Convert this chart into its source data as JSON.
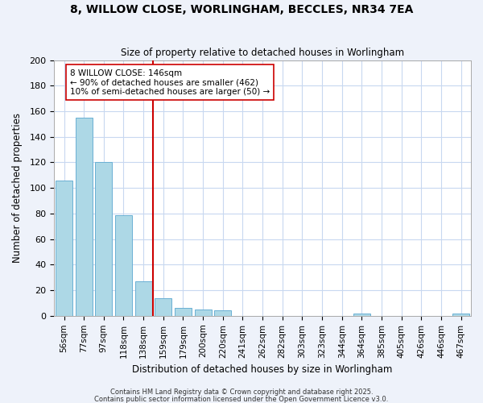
{
  "title": "8, WILLOW CLOSE, WORLINGHAM, BECCLES, NR34 7EA",
  "subtitle": "Size of property relative to detached houses in Worlingham",
  "xlabel": "Distribution of detached houses by size in Worlingham",
  "ylabel": "Number of detached properties",
  "bar_labels": [
    "56sqm",
    "77sqm",
    "97sqm",
    "118sqm",
    "138sqm",
    "159sqm",
    "179sqm",
    "200sqm",
    "220sqm",
    "241sqm",
    "262sqm",
    "282sqm",
    "303sqm",
    "323sqm",
    "344sqm",
    "364sqm",
    "385sqm",
    "405sqm",
    "426sqm",
    "446sqm",
    "467sqm"
  ],
  "bar_values": [
    106,
    155,
    120,
    79,
    27,
    14,
    6,
    5,
    4,
    0,
    0,
    0,
    0,
    0,
    0,
    2,
    0,
    0,
    0,
    0,
    2
  ],
  "bar_color": "#add8e6",
  "bar_edge_color": "#6ab0d4",
  "vline_x": 4.5,
  "vline_color": "#cc0000",
  "annotation_title": "8 WILLOW CLOSE: 146sqm",
  "annotation_line1": "← 90% of detached houses are smaller (462)",
  "annotation_line2": "10% of semi-detached houses are larger (50) →",
  "ylim": [
    0,
    200
  ],
  "yticks": [
    0,
    20,
    40,
    60,
    80,
    100,
    120,
    140,
    160,
    180,
    200
  ],
  "footnote1": "Contains HM Land Registry data © Crown copyright and database right 2025.",
  "footnote2": "Contains public sector information licensed under the Open Government Licence v3.0.",
  "bg_color": "#eef2fa",
  "plot_bg_color": "#ffffff",
  "grid_color": "#c8d8f0"
}
